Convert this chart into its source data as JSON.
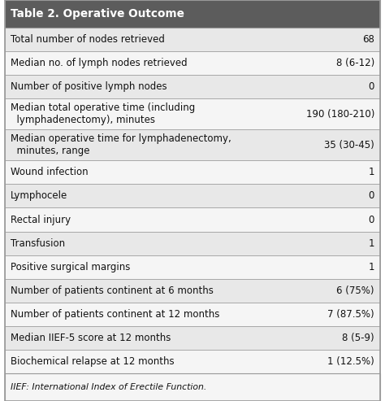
{
  "title": "Table 2. Operative Outcome",
  "title_bg": "#5c5c5c",
  "title_color": "#ffffff",
  "footer": "IIEF: International Index of Erectile Function.",
  "rows": [
    {
      "label": "Total number of nodes retrieved",
      "value": "68",
      "bg": "#e8e8e8"
    },
    {
      "label": "Median no. of lymph nodes retrieved",
      "value": "8 (6-12)",
      "bg": "#f5f5f5"
    },
    {
      "label": "Number of positive lymph nodes",
      "value": "0",
      "bg": "#e8e8e8"
    },
    {
      "label": "Median total operative time (including\n  lymphadenectomy), minutes",
      "value": "190 (180-210)",
      "bg": "#f5f5f5"
    },
    {
      "label": "Median operative time for lymphadenectomy,\n  minutes, range",
      "value": "35 (30-45)",
      "bg": "#e8e8e8"
    },
    {
      "label": "Wound infection",
      "value": "1",
      "bg": "#f5f5f5"
    },
    {
      "label": "Lymphocele",
      "value": "0",
      "bg": "#e8e8e8"
    },
    {
      "label": "Rectal injury",
      "value": "0",
      "bg": "#f5f5f5"
    },
    {
      "label": "Transfusion",
      "value": "1",
      "bg": "#e8e8e8"
    },
    {
      "label": "Positive surgical margins",
      "value": "1",
      "bg": "#f5f5f5"
    },
    {
      "label": "Number of patients continent at 6 months",
      "value": "6 (75%)",
      "bg": "#e8e8e8"
    },
    {
      "label": "Number of patients continent at 12 months",
      "value": "7 (87.5%)",
      "bg": "#f5f5f5"
    },
    {
      "label": "Median IIEF-5 score at 12 months",
      "value": "8 (5-9)",
      "bg": "#e8e8e8"
    },
    {
      "label": "Biochemical relapse at 12 months",
      "value": "1 (12.5%)",
      "bg": "#f5f5f5"
    }
  ],
  "footer_bg": "#f5f5f5",
  "border_color": "#999999",
  "text_color": "#111111",
  "font_size": 8.5,
  "title_font_size": 9.8
}
